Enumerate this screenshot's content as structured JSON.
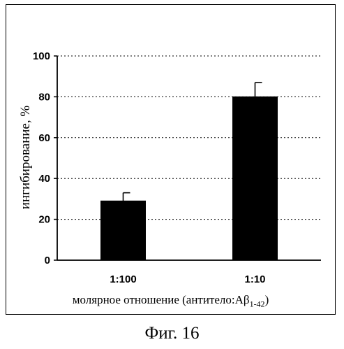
{
  "caption": "Фиг. 16",
  "chart_data": {
    "type": "bar",
    "categories": [
      "1:100",
      "1:10"
    ],
    "values": [
      29,
      80
    ],
    "error": [
      4,
      7
    ],
    "ylabel": "ингибирование, %",
    "xlabel": {
      "main": "молярное отношение (антитело:Aβ",
      "subscript": "1-42",
      "close": ")"
    },
    "ylim": [
      0,
      100
    ],
    "yticks": [
      0,
      20,
      40,
      60,
      80,
      100
    ],
    "grid": "horizontal dotted",
    "bar_color": "#000000"
  }
}
